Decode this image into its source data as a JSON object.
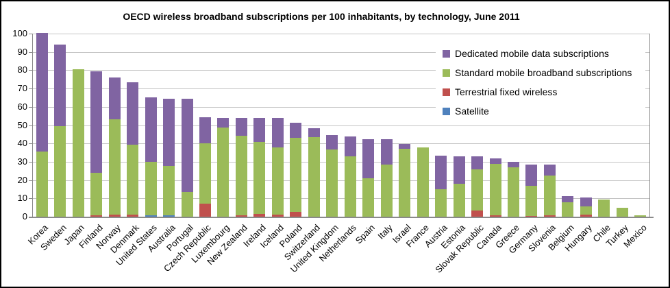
{
  "chart_data": {
    "type": "bar",
    "stacked": true,
    "title": "OECD wireless broadband subscriptions per 100 inhabitants, by technology, June 2011",
    "xlabel": "",
    "ylabel": "",
    "ylim": [
      0,
      100
    ],
    "yticks": [
      0,
      10,
      20,
      30,
      40,
      50,
      60,
      70,
      80,
      90,
      100
    ],
    "grid": true,
    "legend_position": "top-right-inside",
    "categories": [
      "Korea",
      "Sweden",
      "Japan",
      "Finland",
      "Norway",
      "Denmark",
      "United States",
      "Australia",
      "Portugal",
      "Czech Republic",
      "Luxembourg",
      "New Zealand",
      "Ireland",
      "Iceland",
      "Poland",
      "Switzerland",
      "United Kingdom",
      "Netherlands",
      "Spain",
      "Italy",
      "Israel",
      "France",
      "Austria",
      "Estonia",
      "Slovak Republic",
      "Canada",
      "Greece",
      "Germany",
      "Slovenia",
      "Belgium",
      "Hungary",
      "Chile",
      "Turkey",
      "Mexico"
    ],
    "series": [
      {
        "key": "satellite",
        "name": "Satellite",
        "color": "#4F81BD",
        "values": [
          0,
          0,
          0,
          0,
          0,
          0,
          0.9,
          0.9,
          0,
          0,
          0,
          0,
          0,
          0,
          0,
          0,
          0,
          0,
          0,
          0,
          0,
          0,
          0,
          0,
          0,
          0,
          0,
          0,
          0,
          0,
          0,
          0,
          0,
          0
        ]
      },
      {
        "key": "fixed_wireless",
        "name": "Terrestrial fixed wireless",
        "color": "#C0504D",
        "values": [
          0,
          0,
          0,
          0.8,
          1.0,
          1.1,
          0,
          0,
          0,
          7.0,
          0,
          0.7,
          1.5,
          1.0,
          2.5,
          0,
          0,
          0,
          0,
          0,
          0,
          0,
          0,
          0,
          3.5,
          0.9,
          0,
          0.4,
          0.8,
          0,
          1.2,
          0,
          0,
          0
        ]
      },
      {
        "key": "standard_mobile",
        "name": "Standard mobile broadband subscriptions",
        "color": "#9BBB59",
        "values": [
          35.5,
          49.5,
          80.5,
          23.0,
          52.3,
          38.2,
          29.1,
          26.9,
          13.3,
          32.9,
          48.8,
          43.4,
          39.5,
          36.7,
          40.7,
          43.5,
          36.8,
          33.1,
          21.0,
          28.5,
          36.9,
          38.0,
          15.1,
          17.9,
          22.5,
          28.1,
          26.9,
          16.5,
          21.8,
          8.0,
          4.6,
          9.5,
          4.9,
          0.6
        ]
      },
      {
        "key": "dedicated_mobile",
        "name": "Dedicated mobile data subscriptions",
        "color": "#8064A2",
        "values": [
          64.7,
          44.5,
          0,
          55.7,
          22.7,
          34.2,
          35.0,
          36.7,
          51.2,
          14.4,
          5.3,
          9.9,
          13.1,
          16.4,
          8.0,
          5.0,
          7.6,
          10.7,
          21.2,
          13.7,
          2.9,
          0,
          18.2,
          15.2,
          7.0,
          2.7,
          3.0,
          11.7,
          6.0,
          3.3,
          4.7,
          0,
          0,
          0
        ]
      }
    ],
    "legend_order": [
      "dedicated_mobile",
      "standard_mobile",
      "fixed_wireless",
      "satellite"
    ]
  }
}
